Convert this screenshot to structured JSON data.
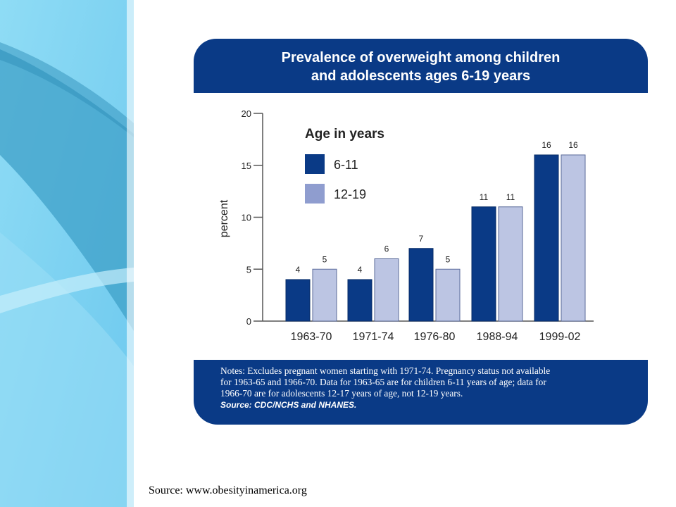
{
  "colors": {
    "navy": "#0a3a86",
    "series_6_11": "#0a3a86",
    "series_12_19": "#bcc5e3",
    "legend_12_19": "#8f9dcf",
    "panel_light": "#7fd3f0",
    "panel_dark": "#3fa9cf"
  },
  "chart_data": {
    "type": "bar",
    "title": "Prevalence of overweight among children and adolescents ages 6-19 years",
    "title_lines": [
      "Prevalence of overweight among children",
      "and adolescents ages 6-19 years"
    ],
    "xlabel": "",
    "ylabel": "percent",
    "ylim": [
      0,
      20
    ],
    "yticks": [
      "0",
      "5",
      "10",
      "15",
      "20"
    ],
    "grid": false,
    "legend_title": "Age in years",
    "legend_position": "top-left",
    "categories": [
      "1963-70",
      "1971-74",
      "1976-80",
      "1988-94",
      "1999-02"
    ],
    "series": [
      {
        "name": "6-11",
        "values": [
          4,
          4,
          7,
          11,
          16
        ],
        "labels": [
          "4",
          "4",
          "7",
          "11",
          "16"
        ]
      },
      {
        "name": "12-19",
        "values": [
          5,
          6,
          5,
          11,
          16
        ],
        "labels": [
          "5",
          "6",
          "5",
          "11",
          "16"
        ]
      }
    ]
  },
  "notes": {
    "line1": "Notes: Excludes pregnant women starting with 1971-74. Pregnancy status not available",
    "line2": "for 1963-65 and 1966-70. Data for 1963-65 are for children 6-11 years of age; data for",
    "line3": "1966-70 are for adolescents 12-17 years of age, not 12-19 years.",
    "source": "Source: CDC/NCHS and NHANES."
  },
  "page_source": "Source: www.obesityinamerica.org"
}
